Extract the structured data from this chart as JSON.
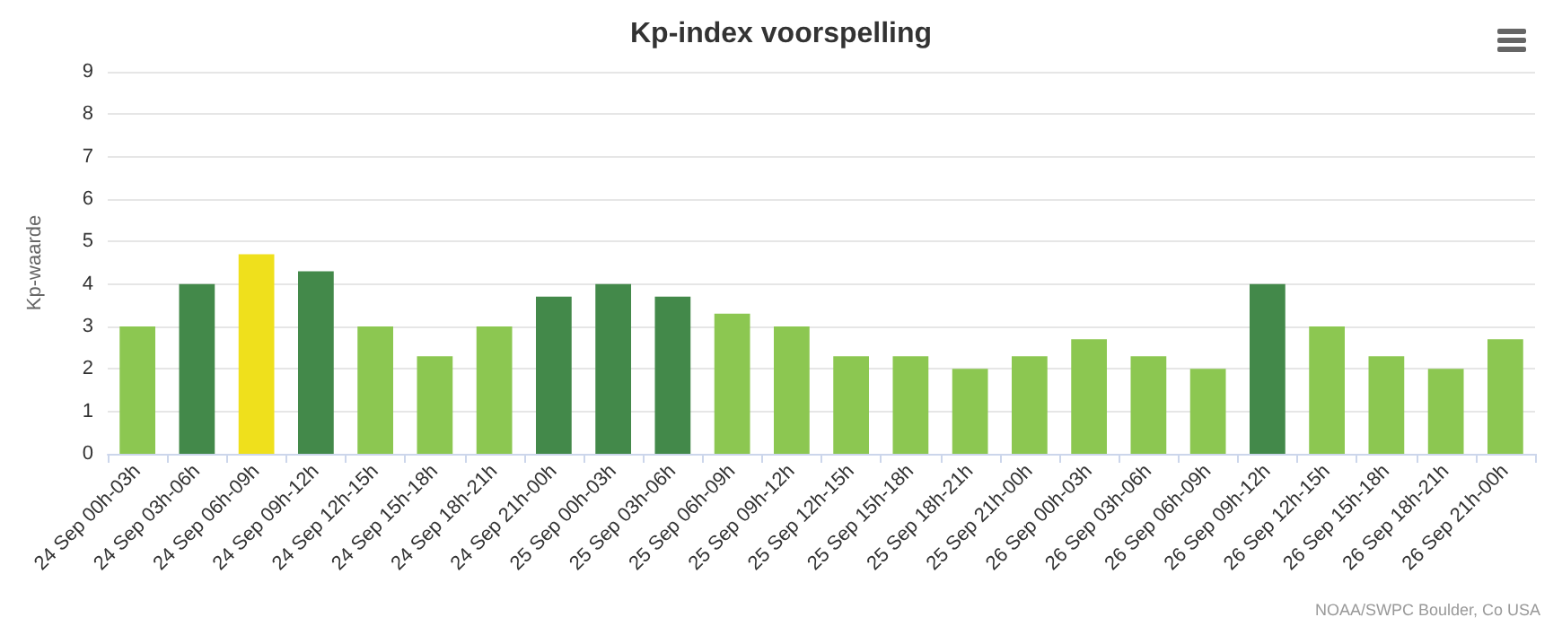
{
  "chart_data": {
    "type": "bar",
    "title": "Kp-index voorspelling",
    "ylabel": "Kp-waarde",
    "categories": [
      "24 Sep 00h-03h",
      "24 Sep 03h-06h",
      "24 Sep 06h-09h",
      "24 Sep 09h-12h",
      "24 Sep 12h-15h",
      "24 Sep 15h-18h",
      "24 Sep 18h-21h",
      "24 Sep 21h-00h",
      "25 Sep 00h-03h",
      "25 Sep 03h-06h",
      "25 Sep 06h-09h",
      "25 Sep 09h-12h",
      "25 Sep 12h-15h",
      "25 Sep 15h-18h",
      "25 Sep 18h-21h",
      "25 Sep 21h-00h",
      "26 Sep 00h-03h",
      "26 Sep 03h-06h",
      "26 Sep 06h-09h",
      "26 Sep 09h-12h",
      "26 Sep 12h-15h",
      "26 Sep 15h-18h",
      "26 Sep 18h-21h",
      "26 Sep 21h-00h"
    ],
    "values": [
      3,
      4,
      4.7,
      4.3,
      3,
      2.3,
      3,
      3.7,
      4,
      3.7,
      3.3,
      3,
      2.3,
      2.3,
      2,
      2.3,
      2.7,
      2.3,
      2,
      4,
      3,
      2.3,
      2,
      2.7
    ],
    "colors": [
      "#8cc751",
      "#43894a",
      "#efe01c",
      "#43894a",
      "#8cc751",
      "#8cc751",
      "#8cc751",
      "#43894a",
      "#43894a",
      "#43894a",
      "#8cc751",
      "#8cc751",
      "#8cc751",
      "#8cc751",
      "#8cc751",
      "#8cc751",
      "#8cc751",
      "#8cc751",
      "#8cc751",
      "#43894a",
      "#8cc751",
      "#8cc751",
      "#8cc751",
      "#8cc751"
    ],
    "ylim": [
      0,
      9
    ],
    "yticks": [
      0,
      1,
      2,
      3,
      4,
      5,
      6,
      7,
      8,
      9
    ],
    "grid": "y",
    "annotations": [
      "NOAA/SWPC Boulder, Co USA"
    ]
  }
}
